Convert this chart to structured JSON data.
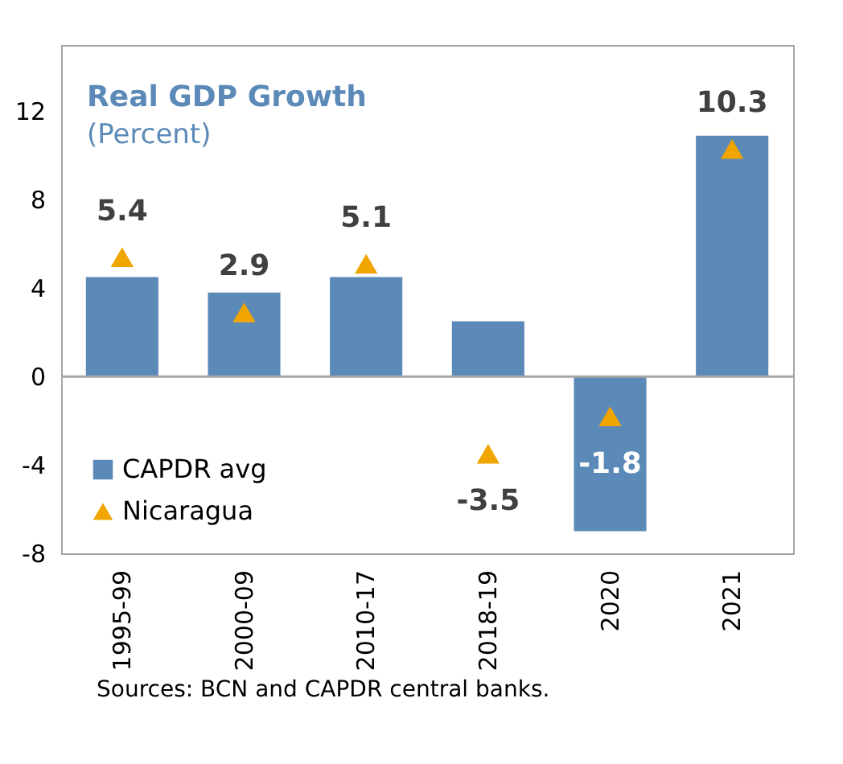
{
  "chart_data": {
    "type": "bar",
    "title": "Real GDP Growth",
    "subtitle": "(Percent)",
    "categories": [
      "1995-99",
      "2000-09",
      "2010-17",
      "2018-19",
      "2020",
      "2021"
    ],
    "series": [
      {
        "name": "CAPDR avg",
        "color": "#5b8ab8",
        "values": [
          4.5,
          3.8,
          4.5,
          2.5,
          -7.0,
          10.9
        ]
      },
      {
        "name": "Nicaragua",
        "type": "scatter",
        "marker": "triangle",
        "color": "#f0a500",
        "values": [
          5.4,
          2.9,
          5.1,
          -3.5,
          -1.8,
          10.3
        ],
        "value_labels": [
          "5.4",
          "2.9",
          "5.1",
          "-3.5",
          "-1.8",
          "10.3"
        ]
      }
    ],
    "ylim": [
      -8,
      15
    ],
    "yticks": [
      -8,
      -4,
      0,
      4,
      8,
      12
    ],
    "ref_lines": [
      {
        "axis": "y",
        "value": 0,
        "color": "#a6a6a6"
      }
    ],
    "legend": "bottom left",
    "annotations": [
      "Sources: BCN and CAPDR central banks."
    ]
  }
}
